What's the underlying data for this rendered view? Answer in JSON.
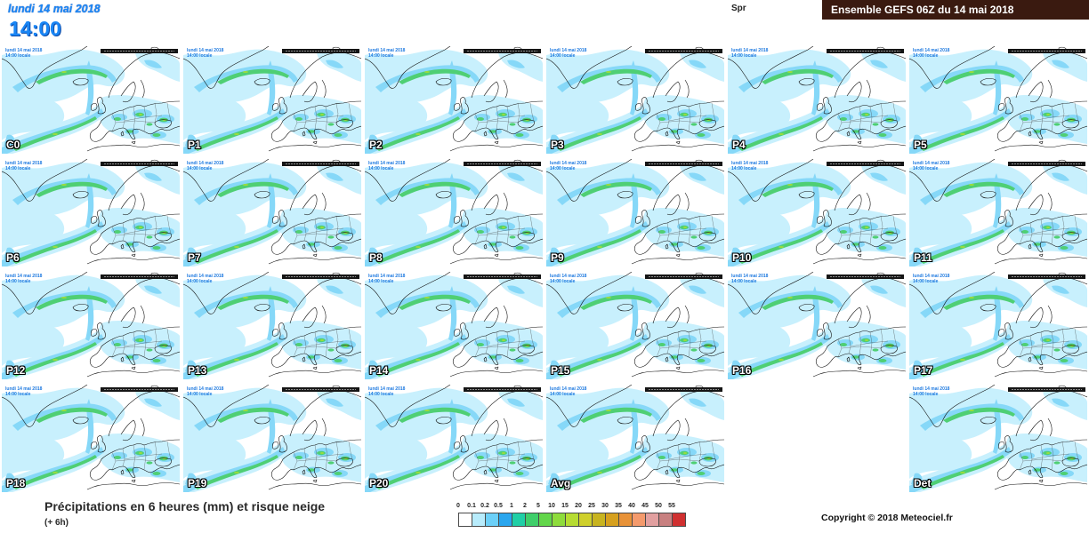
{
  "colors": {
    "header_blue": "#1a86f5",
    "title_box": "#3a1a10"
  },
  "header": {
    "date": "lundi 14 mai 2018",
    "time": "14:00",
    "param_code": "Spr",
    "title": "Ensemble GEFS 06Z du 14 mai 2018"
  },
  "map_inset": {
    "date": "lundi 14 mai 2018",
    "time": "14:00 locale"
  },
  "maps": [
    {
      "label": "C0"
    },
    {
      "label": "P1"
    },
    {
      "label": "P2"
    },
    {
      "label": "P3"
    },
    {
      "label": "P4"
    },
    {
      "label": "P5"
    },
    {
      "label": "P6"
    },
    {
      "label": "P7"
    },
    {
      "label": "P8"
    },
    {
      "label": "P9"
    },
    {
      "label": "P10"
    },
    {
      "label": "P11"
    },
    {
      "label": "P12"
    },
    {
      "label": "P13"
    },
    {
      "label": "P14"
    },
    {
      "label": "P15"
    },
    {
      "label": "P16"
    },
    {
      "label": "P17"
    },
    {
      "label": "P18"
    },
    {
      "label": "P19"
    },
    {
      "label": "P20"
    },
    {
      "label": "Avg"
    },
    null,
    {
      "label": "Det"
    }
  ],
  "footer": {
    "title": "Précipitations en 6 heures (mm) et risque neige",
    "subtitle": "(+ 6h)",
    "copyright": "Copyright © 2018 Meteociel.fr"
  },
  "legend": {
    "labels": [
      "0",
      "0.1",
      "0.2",
      "0.5",
      "1",
      "2",
      "5",
      "10",
      "15",
      "20",
      "25",
      "30",
      "35",
      "40",
      "45",
      "50",
      "55"
    ],
    "colors": [
      "#ffffff",
      "#b8ecfc",
      "#6cd0f8",
      "#2aa6ee",
      "#20cfa6",
      "#3fce6a",
      "#62d64a",
      "#8edc3c",
      "#b6dc32",
      "#cfd02c",
      "#c8b420",
      "#d6a01e",
      "#e89238",
      "#f49a6c",
      "#e2a0a0",
      "#c88080",
      "#d03030"
    ]
  }
}
